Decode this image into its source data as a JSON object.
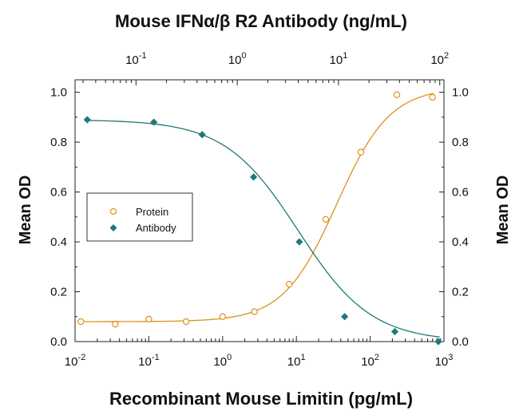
{
  "chart_data": {
    "type": "scatter",
    "top_axis_label": "Mouse IFNα/β R2 Antibody (ng/mL)",
    "x_label": "Recombinant Mouse Limitin (pg/mL)",
    "y_left_label": "Mean OD",
    "y_right_label": "Mean OD",
    "x_scale": "log",
    "x_bottom_range": [
      0.01,
      1000
    ],
    "x_top_range": [
      0.025,
      110
    ],
    "y_range": [
      0,
      1.05
    ],
    "y_ticks": [
      "0.0",
      "0.2",
      "0.4",
      "0.6",
      "0.8",
      "1.0"
    ],
    "bottom_ticks": [
      {
        "base": "10",
        "exp": "-2"
      },
      {
        "base": "10",
        "exp": "-1"
      },
      {
        "base": "10",
        "exp": "0"
      },
      {
        "base": "10",
        "exp": "1"
      },
      {
        "base": "10",
        "exp": "2"
      },
      {
        "base": "10",
        "exp": "3"
      }
    ],
    "top_ticks": [
      {
        "base": "10",
        "exp": "-1"
      },
      {
        "base": "10",
        "exp": "0"
      },
      {
        "base": "10",
        "exp": "1"
      },
      {
        "base": "10",
        "exp": "2"
      }
    ],
    "legend_position": "middle-left",
    "series": [
      {
        "name": "Protein",
        "axis": "bottom",
        "marker": "open-circle",
        "color": "#e0901c",
        "x": [
          0.012,
          0.035,
          0.1,
          0.32,
          1.0,
          2.7,
          8.0,
          25,
          75,
          230,
          700
        ],
        "y": [
          0.08,
          0.07,
          0.09,
          0.08,
          0.1,
          0.12,
          0.23,
          0.49,
          0.76,
          0.99,
          0.98
        ],
        "fit": {
          "bottom": 0.08,
          "top": 1.02,
          "ec50": 35,
          "hill": 1.2
        }
      },
      {
        "name": "Antibody",
        "axis": "top",
        "marker": "filled-diamond",
        "color": "#1d7a78",
        "x": [
          0.033,
          0.15,
          0.45,
          1.45,
          4.1,
          11.5,
          36,
          97
        ],
        "y": [
          0.89,
          0.88,
          0.83,
          0.66,
          0.4,
          0.1,
          0.04,
          0.0
        ],
        "fit": {
          "bottom": 0.0,
          "top": 0.89,
          "ec50": 4.0,
          "hill": 1.2
        }
      }
    ]
  }
}
